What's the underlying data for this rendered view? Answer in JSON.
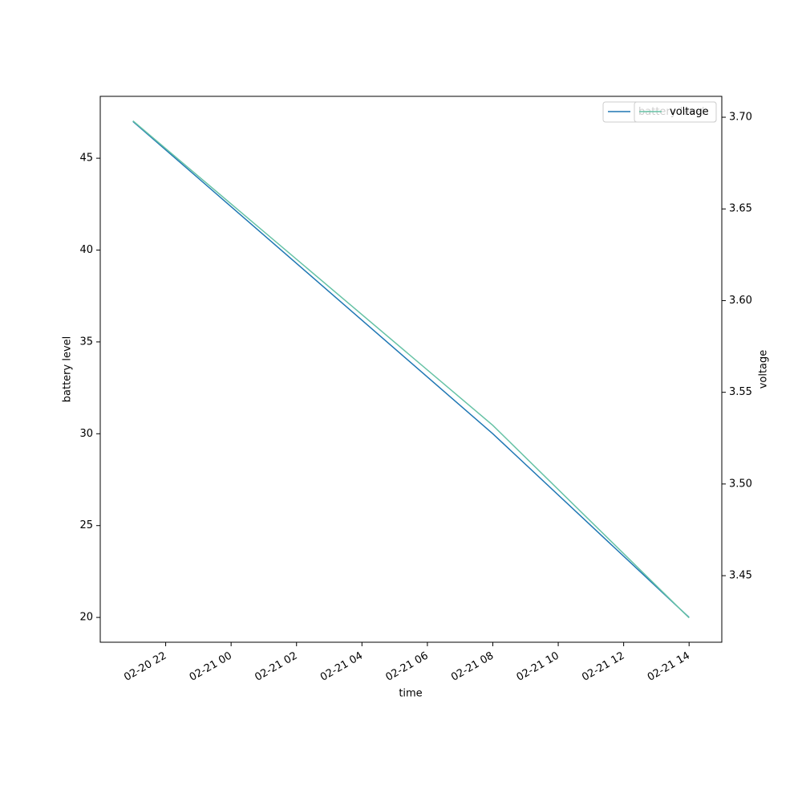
{
  "chart_data": {
    "type": "line",
    "x_label": "time",
    "y_label": "battery level",
    "y2_label": "voltage",
    "x": [
      "02-20 21",
      "02-21 08",
      "02-21 14"
    ],
    "xlim": [
      "02-20 20",
      "02-21 15"
    ],
    "xticks": [
      "02-20 22",
      "02-21 00",
      "02-21 02",
      "02-21 04",
      "02-21 06",
      "02-21 08",
      "02-21 10",
      "02-21 12",
      "02-21 14"
    ],
    "ylim": [
      18.65,
      48.37
    ],
    "yticks": [
      20,
      25,
      30,
      35,
      40,
      45
    ],
    "y2lim": [
      3.4137,
      3.7114
    ],
    "y2ticks": [
      3.45,
      {
        "value": 3.5,
        "label": "3.50"
      },
      3.55,
      {
        "value": 3.6,
        "label": "3.60"
      },
      3.65,
      {
        "value": 3.7,
        "label": "3.70"
      }
    ],
    "series": [
      {
        "name": "battery level",
        "color": "#1f77b4",
        "values": [
          47,
          30,
          20
        ]
      },
      {
        "name": "voltage",
        "color": "#66c2a5",
        "axis": "y2",
        "values": [
          3.698,
          3.532,
          3.427
        ]
      }
    ],
    "legend": "upper right"
  }
}
